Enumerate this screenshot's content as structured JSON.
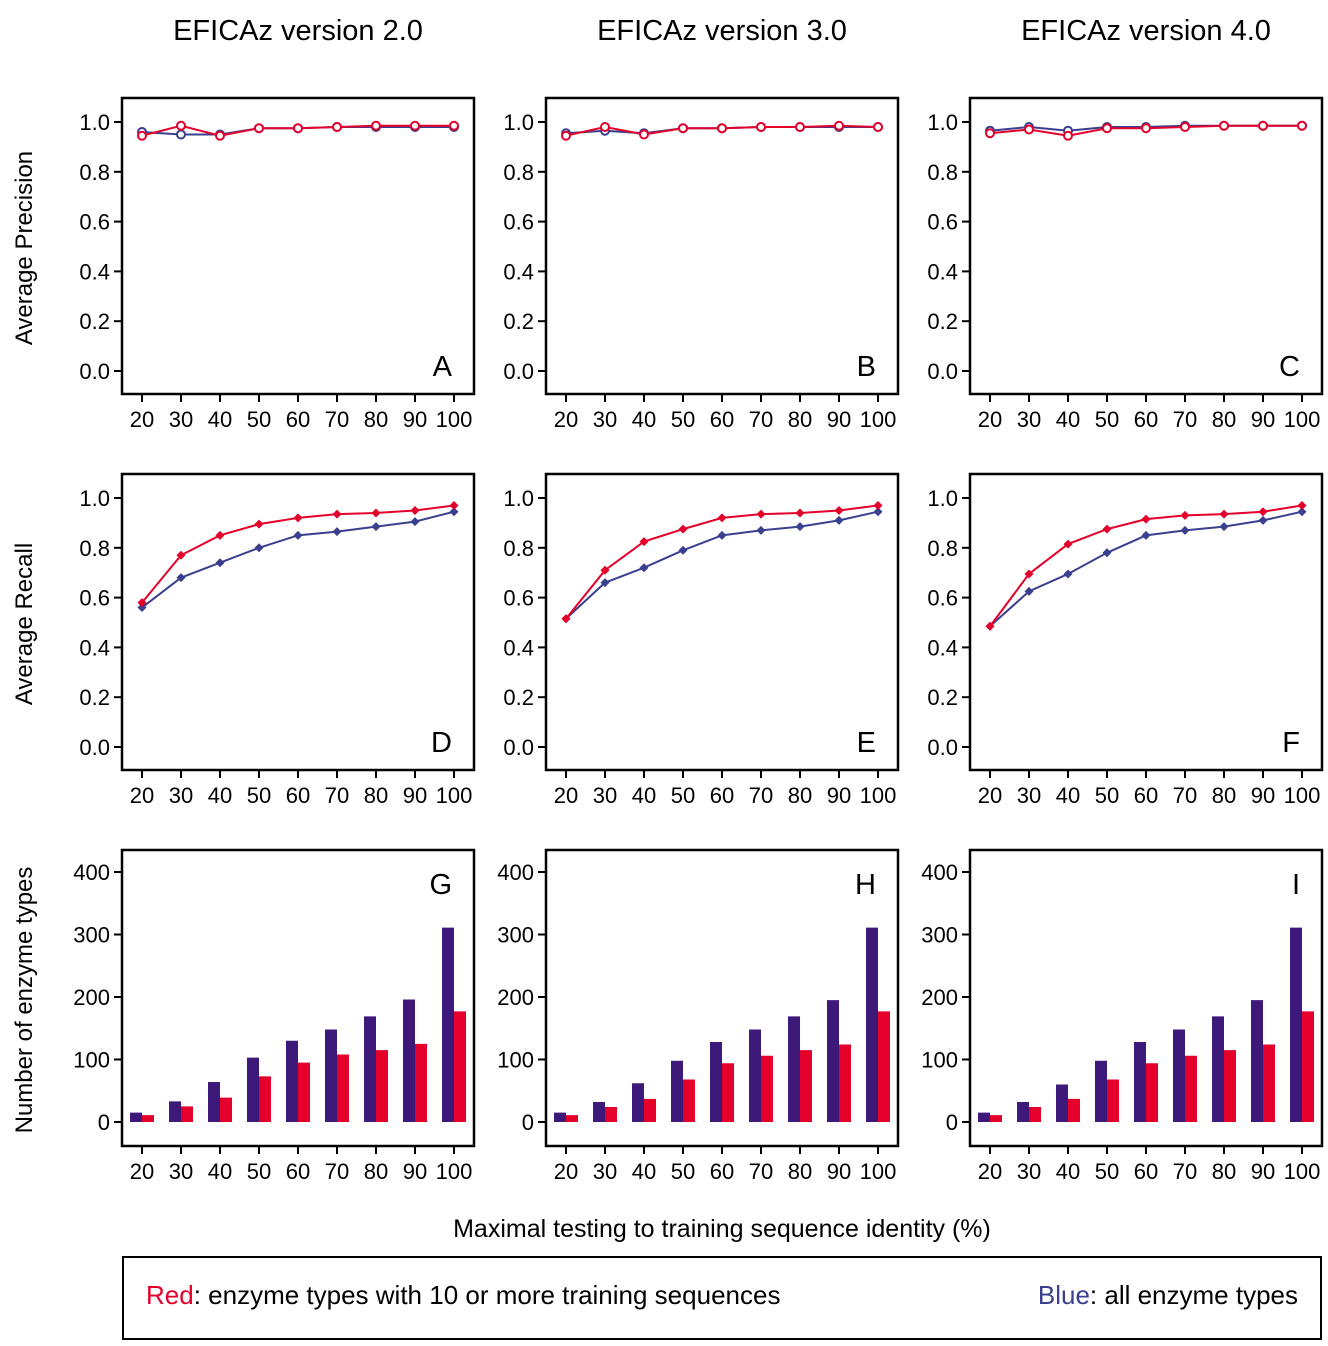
{
  "figure": {
    "column_titles": [
      "EFICAz version 2.0",
      "EFICAz version 3.0",
      "EFICAz version 4.0"
    ],
    "row_ylabels": [
      "Average Precision",
      "Average Recall",
      "Number of enzyme types"
    ],
    "shared_xlabel": "Maximal testing to training sequence identity (%)"
  },
  "legend": {
    "red_word": "Red",
    "red_text": ":  enzyme types with 10 or more training sequences",
    "blue_word": "Blue",
    "blue_text": ":  all enzyme types",
    "colors": {
      "red": "#e4002b",
      "blue": "#3b3f8f",
      "bar_blue": "#3d1a7a"
    }
  },
  "chart_data": [
    {
      "type": "line",
      "panel_label": "A",
      "x": [
        20,
        30,
        40,
        50,
        60,
        70,
        80,
        90,
        100
      ],
      "x_tick_labels": [
        "20",
        "30",
        "40",
        "50",
        "60",
        "70",
        "80",
        "90",
        "100"
      ],
      "ylim": [
        0,
        1.0
      ],
      "y_ticks": [
        "0.0",
        "0.2",
        "0.4",
        "0.6",
        "0.8",
        "1.0"
      ],
      "marker": "open-circle",
      "series": [
        {
          "color": "blue",
          "values": [
            0.96,
            0.95,
            0.95,
            0.975,
            0.975,
            0.98,
            0.98,
            0.98,
            0.98
          ]
        },
        {
          "color": "red",
          "values": [
            0.945,
            0.985,
            0.945,
            0.975,
            0.975,
            0.98,
            0.985,
            0.985,
            0.985
          ]
        }
      ]
    },
    {
      "type": "line",
      "panel_label": "B",
      "x": [
        20,
        30,
        40,
        50,
        60,
        70,
        80,
        90,
        100
      ],
      "x_tick_labels": [
        "20",
        "30",
        "40",
        "50",
        "60",
        "70",
        "80",
        "90",
        "100"
      ],
      "ylim": [
        0,
        1.0
      ],
      "y_ticks": [
        "0.0",
        "0.2",
        "0.4",
        "0.6",
        "0.8",
        "1.0"
      ],
      "marker": "open-circle",
      "series": [
        {
          "color": "blue",
          "values": [
            0.955,
            0.965,
            0.955,
            0.975,
            0.975,
            0.98,
            0.98,
            0.98,
            0.98
          ]
        },
        {
          "color": "red",
          "values": [
            0.945,
            0.98,
            0.95,
            0.975,
            0.975,
            0.98,
            0.98,
            0.985,
            0.98
          ]
        }
      ]
    },
    {
      "type": "line",
      "panel_label": "C",
      "x": [
        20,
        30,
        40,
        50,
        60,
        70,
        80,
        90,
        100
      ],
      "x_tick_labels": [
        "20",
        "30",
        "40",
        "50",
        "60",
        "70",
        "80",
        "90",
        "100"
      ],
      "ylim": [
        0,
        1.0
      ],
      "y_ticks": [
        "0.0",
        "0.2",
        "0.4",
        "0.6",
        "0.8",
        "1.0"
      ],
      "marker": "open-circle",
      "series": [
        {
          "color": "blue",
          "values": [
            0.965,
            0.98,
            0.965,
            0.98,
            0.98,
            0.985,
            0.985,
            0.985,
            0.985
          ]
        },
        {
          "color": "red",
          "values": [
            0.955,
            0.97,
            0.945,
            0.975,
            0.975,
            0.98,
            0.985,
            0.985,
            0.985
          ]
        }
      ]
    },
    {
      "type": "line",
      "panel_label": "D",
      "x": [
        20,
        30,
        40,
        50,
        60,
        70,
        80,
        90,
        100
      ],
      "x_tick_labels": [
        "20",
        "30",
        "40",
        "50",
        "60",
        "70",
        "80",
        "90",
        "100"
      ],
      "ylim": [
        0,
        1.0
      ],
      "y_ticks": [
        "0.0",
        "0.2",
        "0.4",
        "0.6",
        "0.8",
        "1.0"
      ],
      "marker": "diamond",
      "series": [
        {
          "color": "blue",
          "values": [
            0.56,
            0.68,
            0.74,
            0.8,
            0.85,
            0.865,
            0.885,
            0.905,
            0.945
          ]
        },
        {
          "color": "red",
          "values": [
            0.58,
            0.77,
            0.85,
            0.895,
            0.92,
            0.935,
            0.94,
            0.95,
            0.97
          ]
        }
      ]
    },
    {
      "type": "line",
      "panel_label": "E",
      "x": [
        20,
        30,
        40,
        50,
        60,
        70,
        80,
        90,
        100
      ],
      "x_tick_labels": [
        "20",
        "30",
        "40",
        "50",
        "60",
        "70",
        "80",
        "90",
        "100"
      ],
      "ylim": [
        0,
        1.0
      ],
      "y_ticks": [
        "0.0",
        "0.2",
        "0.4",
        "0.6",
        "0.8",
        "1.0"
      ],
      "marker": "diamond",
      "series": [
        {
          "color": "blue",
          "values": [
            0.515,
            0.66,
            0.72,
            0.79,
            0.85,
            0.87,
            0.885,
            0.91,
            0.945
          ]
        },
        {
          "color": "red",
          "values": [
            0.515,
            0.71,
            0.825,
            0.875,
            0.92,
            0.935,
            0.94,
            0.95,
            0.97
          ]
        }
      ]
    },
    {
      "type": "line",
      "panel_label": "F",
      "x": [
        20,
        30,
        40,
        50,
        60,
        70,
        80,
        90,
        100
      ],
      "x_tick_labels": [
        "20",
        "30",
        "40",
        "50",
        "60",
        "70",
        "80",
        "90",
        "100"
      ],
      "ylim": [
        0,
        1.0
      ],
      "y_ticks": [
        "0.0",
        "0.2",
        "0.4",
        "0.6",
        "0.8",
        "1.0"
      ],
      "marker": "diamond",
      "series": [
        {
          "color": "blue",
          "values": [
            0.485,
            0.625,
            0.695,
            0.78,
            0.85,
            0.87,
            0.885,
            0.91,
            0.945
          ]
        },
        {
          "color": "red",
          "values": [
            0.485,
            0.695,
            0.815,
            0.875,
            0.915,
            0.93,
            0.935,
            0.945,
            0.97
          ]
        }
      ]
    },
    {
      "type": "bar",
      "panel_label": "G",
      "categories": [
        "20",
        "30",
        "40",
        "50",
        "60",
        "70",
        "80",
        "90",
        "100"
      ],
      "ylim": [
        0,
        400
      ],
      "y_ticks": [
        "0",
        "100",
        "200",
        "300",
        "400"
      ],
      "series": [
        {
          "color": "blue",
          "values": [
            15,
            33,
            64,
            103,
            130,
            148,
            169,
            196,
            311
          ]
        },
        {
          "color": "red",
          "values": [
            11,
            25,
            39,
            73,
            95,
            108,
            115,
            125,
            177
          ]
        }
      ]
    },
    {
      "type": "bar",
      "panel_label": "H",
      "categories": [
        "20",
        "30",
        "40",
        "50",
        "60",
        "70",
        "80",
        "90",
        "100"
      ],
      "ylim": [
        0,
        400
      ],
      "y_ticks": [
        "0",
        "100",
        "200",
        "300",
        "400"
      ],
      "series": [
        {
          "color": "blue",
          "values": [
            15,
            32,
            62,
            98,
            128,
            148,
            169,
            195,
            311
          ]
        },
        {
          "color": "red",
          "values": [
            11,
            24,
            37,
            68,
            94,
            106,
            115,
            124,
            177
          ]
        }
      ]
    },
    {
      "type": "bar",
      "panel_label": "I",
      "categories": [
        "20",
        "30",
        "40",
        "50",
        "60",
        "70",
        "80",
        "90",
        "100"
      ],
      "ylim": [
        0,
        400
      ],
      "y_ticks": [
        "0",
        "100",
        "200",
        "300",
        "400"
      ],
      "series": [
        {
          "color": "blue",
          "values": [
            15,
            32,
            60,
            98,
            128,
            148,
            169,
            195,
            311
          ]
        },
        {
          "color": "red",
          "values": [
            11,
            24,
            37,
            68,
            94,
            106,
            115,
            124,
            177
          ]
        }
      ]
    }
  ]
}
